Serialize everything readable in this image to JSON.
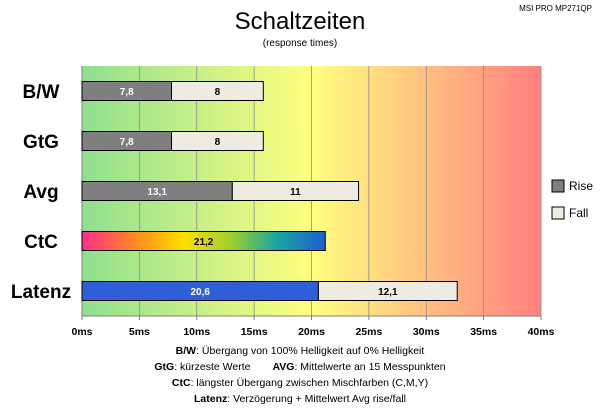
{
  "chart_data": {
    "type": "bar",
    "orientation": "horizontal",
    "stacked": true,
    "title": "Schaltzeiten",
    "subtitle": "(response times)",
    "model": "MSI PRO MP271QP",
    "categories": [
      "B/W",
      "GtG",
      "Avg",
      "CtC",
      "Latenz"
    ],
    "series": [
      {
        "name": "Rise",
        "color": "#7f7f7f",
        "values": [
          7.8,
          7.8,
          13.1,
          null,
          null
        ]
      },
      {
        "name": "Fall",
        "color": "#eeece1",
        "values": [
          8,
          8,
          11,
          null,
          null
        ]
      }
    ],
    "ctc": {
      "value": 21.2,
      "label": "21,2"
    },
    "latenz": {
      "base": 20.6,
      "base_label": "20,6",
      "base_color": "#2f5fd8",
      "add": 12.1,
      "add_label": "12,1"
    },
    "labels": {
      "rise": [
        "7,8",
        "7,8",
        "13,1"
      ],
      "fall": [
        "8",
        "8",
        "11"
      ]
    },
    "xlim": [
      0,
      40
    ],
    "xticks": [
      "0ms",
      "5ms",
      "10ms",
      "15ms",
      "20ms",
      "25ms",
      "30ms",
      "35ms",
      "40ms"
    ],
    "grid": true,
    "legend": {
      "position": "right",
      "entries": [
        "Rise",
        "Fall"
      ]
    },
    "background_gradient": [
      "#8fe08f",
      "#ffff80",
      "#ff8080"
    ]
  },
  "notes": {
    "line1_key": "B/W",
    "line1_text": ":  Übergang von 100% Helligkeit auf 0% Helligkeit",
    "line2_key": "GtG",
    "line2_text": ": kürzeste  Werte",
    "line2b_key": "AVG",
    "line2b_text": ": Mittelwerte  an 15 Messpunkten",
    "line3_key": "CtC",
    "line3_text": ": längster Übergang  zwischen Mischfarben  (C,M,Y)",
    "line4_key": "Latenz",
    "line4_text": ": Verzögerung  + Mittelwert  Avg rise/fall"
  }
}
